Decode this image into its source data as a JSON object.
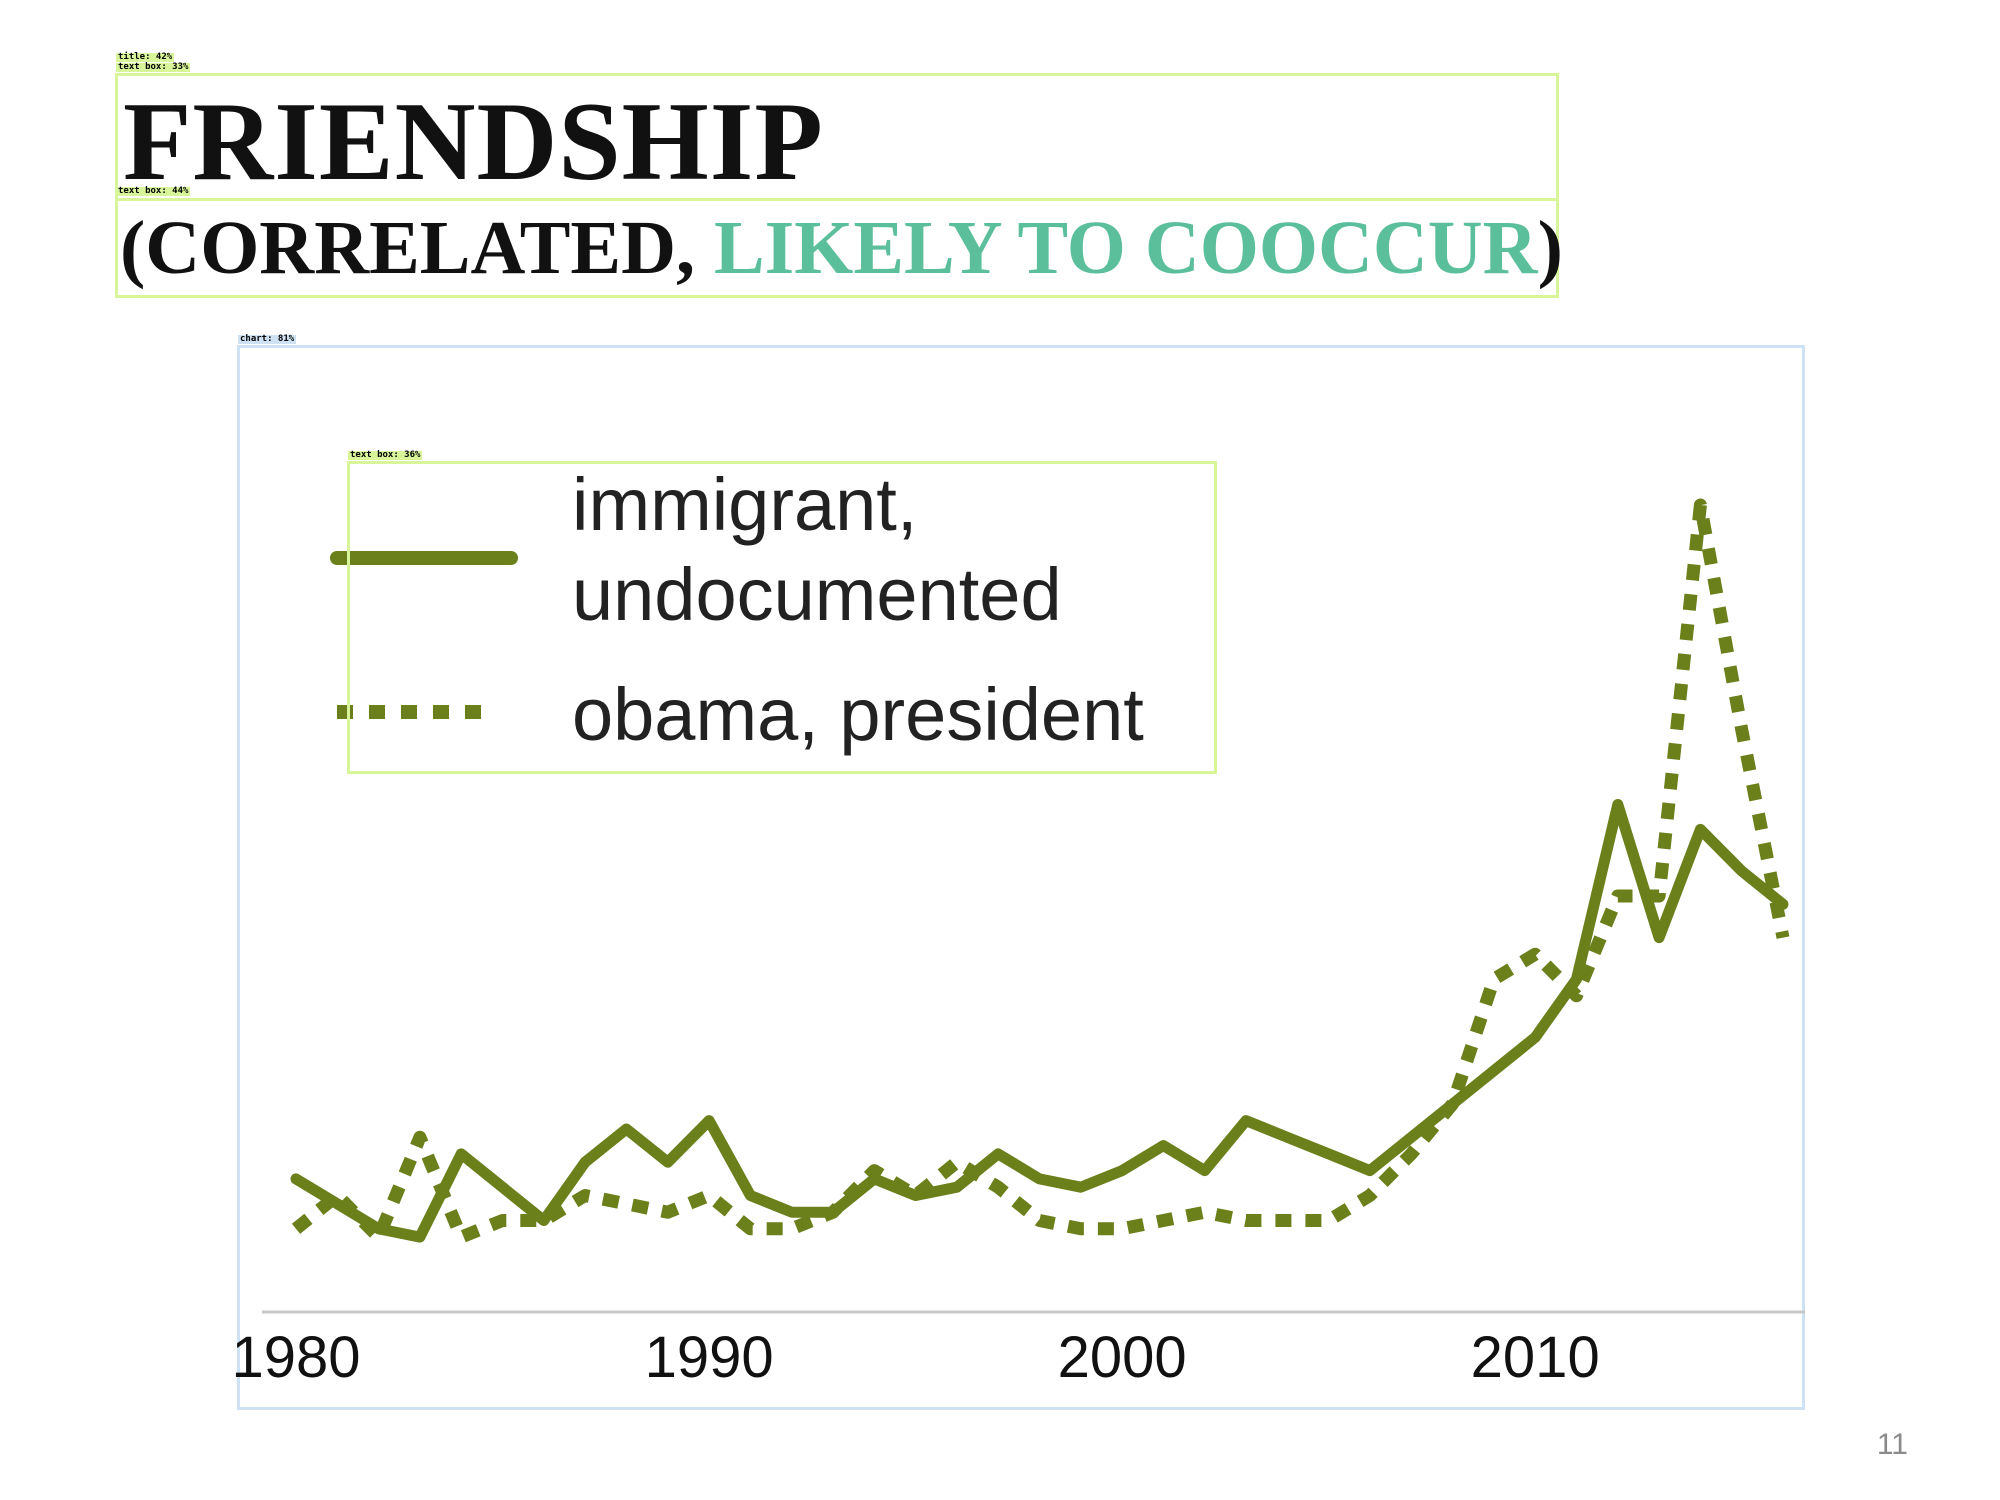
{
  "detections": {
    "title_tag": "title: 42%",
    "textbox_tag_1": "text box: 33%",
    "textbox_tag_2": "text box: 44%",
    "chart_tag": "chart: 81%",
    "legend_tag": "text box: 36%"
  },
  "slide": {
    "title": "FRIENDSHIP",
    "subtitle_open": "(CORRELATED, ",
    "subtitle_highlight": "LIKELY TO COOCCUR",
    "subtitle_close": ")",
    "page_number": "11"
  },
  "colors": {
    "series": "#6b7f1a",
    "accent": "#5cbf9b",
    "axis": "#c8c8c8",
    "detection_box": "#d9f59a",
    "chart_box": "#cfe2f3"
  },
  "chart_data": {
    "type": "line",
    "title": "",
    "xlabel": "",
    "ylabel": "",
    "xlim": [
      1980,
      2016
    ],
    "ylim": [
      0,
      100
    ],
    "x_ticks": [
      "1980",
      "1990",
      "2000",
      "2010"
    ],
    "x_tick_values": [
      1980,
      1990,
      2000,
      2010
    ],
    "grid": false,
    "y_axis_visible": false,
    "legend_position": "top-left",
    "series": [
      {
        "name": "immigrant, undocumented",
        "legend_lines": [
          "immigrant,",
          "undocumented"
        ],
        "style": "solid",
        "x": [
          1980,
          1981,
          1982,
          1983,
          1984,
          1985,
          1986,
          1987,
          1988,
          1989,
          1990,
          1991,
          1992,
          1993,
          1994,
          1995,
          1996,
          1997,
          1998,
          1999,
          2000,
          2001,
          2002,
          2003,
          2004,
          2005,
          2006,
          2007,
          2008,
          2009,
          2010,
          2011,
          2012,
          2013,
          2014,
          2015,
          2016
        ],
        "y": [
          16,
          13,
          10,
          9,
          19,
          15,
          11,
          18,
          22,
          18,
          23,
          14,
          12,
          12,
          16,
          14,
          15,
          19,
          16,
          15,
          17,
          20,
          17,
          23,
          21,
          19,
          17,
          21,
          25,
          29,
          33,
          40,
          61,
          45,
          58,
          53,
          49
        ]
      },
      {
        "name": "obama, president",
        "legend_lines": [
          "obama, president"
        ],
        "style": "dotted",
        "x": [
          1980,
          1981,
          1982,
          1983,
          1984,
          1985,
          1986,
          1987,
          1988,
          1989,
          1990,
          1991,
          1992,
          1993,
          1994,
          1995,
          1996,
          1997,
          1998,
          1999,
          2000,
          2001,
          2002,
          2003,
          2004,
          2005,
          2006,
          2007,
          2008,
          2009,
          2010,
          2011,
          2012,
          2013,
          2014,
          2015,
          2016
        ],
        "y": [
          10,
          14,
          9,
          21,
          9,
          11,
          11,
          14,
          13,
          12,
          14,
          10,
          10,
          12,
          17,
          14,
          18,
          15,
          11,
          10,
          10,
          11,
          12,
          11,
          11,
          11,
          14,
          19,
          25,
          40,
          43,
          38,
          50,
          50,
          97,
          70,
          45
        ]
      }
    ]
  }
}
